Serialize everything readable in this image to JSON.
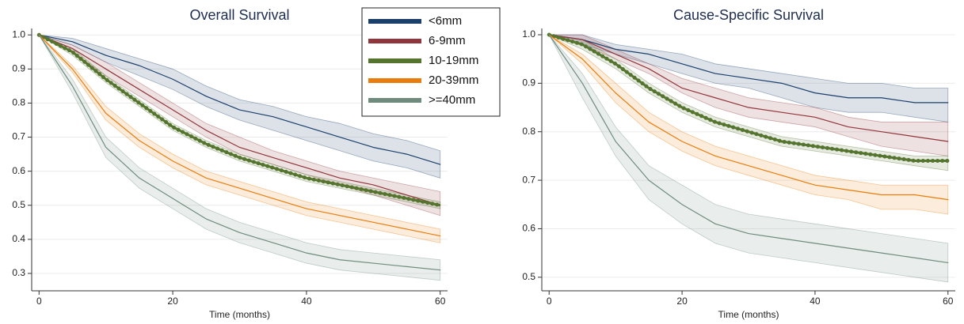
{
  "chart_data": [
    {
      "type": "line",
      "title": "Overall Survival",
      "xlabel": "Time (months)",
      "x": [
        0,
        5,
        10,
        15,
        20,
        25,
        30,
        35,
        40,
        45,
        50,
        55,
        60
      ],
      "xlim": [
        -1.1,
        61.1
      ],
      "xticks": [
        0,
        20,
        40,
        60
      ],
      "ylim": [
        0.249,
        1.019
      ],
      "yticks": [
        0.3,
        0.4,
        0.5,
        0.6,
        0.7,
        0.8,
        0.9,
        {
          "value": 1,
          "label": "1.0"
        }
      ],
      "grid": true,
      "legend": "upper right",
      "series": [
        {
          "name": "<6mm",
          "color": "#1a3f6b",
          "line_width": 1.2,
          "values": [
            1.0,
            0.98,
            0.94,
            0.91,
            0.87,
            0.82,
            0.78,
            0.76,
            0.73,
            0.7,
            0.67,
            0.65,
            0.62
          ],
          "lower": [
            1.0,
            0.97,
            0.92,
            0.88,
            0.84,
            0.79,
            0.75,
            0.72,
            0.69,
            0.66,
            0.63,
            0.61,
            0.58
          ],
          "upper": [
            1.0,
            0.99,
            0.96,
            0.93,
            0.9,
            0.85,
            0.81,
            0.79,
            0.76,
            0.74,
            0.71,
            0.69,
            0.66
          ]
        },
        {
          "name": "6-9mm",
          "color": "#90353b",
          "line_width": 1.2,
          "values": [
            1.0,
            0.96,
            0.9,
            0.84,
            0.78,
            0.72,
            0.67,
            0.64,
            0.61,
            0.58,
            0.56,
            0.53,
            0.5
          ],
          "lower": [
            1.0,
            0.95,
            0.88,
            0.82,
            0.76,
            0.7,
            0.65,
            0.62,
            0.59,
            0.56,
            0.53,
            0.5,
            0.47
          ],
          "upper": [
            1.0,
            0.97,
            0.92,
            0.86,
            0.8,
            0.74,
            0.7,
            0.66,
            0.63,
            0.6,
            0.58,
            0.56,
            0.54
          ]
        },
        {
          "name": "10-19mm",
          "color": "#55752f",
          "line_width": 5,
          "values": [
            1.0,
            0.95,
            0.87,
            0.8,
            0.73,
            0.68,
            0.64,
            0.61,
            0.58,
            0.56,
            0.54,
            0.52,
            0.5
          ],
          "lower": [
            1.0,
            0.94,
            0.86,
            0.79,
            0.72,
            0.67,
            0.63,
            0.6,
            0.57,
            0.55,
            0.53,
            0.51,
            0.49
          ],
          "upper": [
            1.0,
            0.96,
            0.88,
            0.81,
            0.74,
            0.69,
            0.65,
            0.62,
            0.59,
            0.57,
            0.55,
            0.53,
            0.51
          ]
        },
        {
          "name": "20-39mm",
          "color": "#e87d0d",
          "line_width": 1.2,
          "values": [
            1.0,
            0.9,
            0.77,
            0.69,
            0.63,
            0.58,
            0.55,
            0.52,
            0.49,
            0.47,
            0.45,
            0.43,
            0.41
          ],
          "lower": [
            1.0,
            0.89,
            0.75,
            0.67,
            0.61,
            0.56,
            0.53,
            0.5,
            0.47,
            0.45,
            0.43,
            0.41,
            0.39
          ],
          "upper": [
            1.0,
            0.91,
            0.79,
            0.71,
            0.65,
            0.6,
            0.57,
            0.54,
            0.51,
            0.49,
            0.47,
            0.45,
            0.43
          ]
        },
        {
          "name": ">=40mm",
          "color": "#6e8b7d",
          "line_width": 1.2,
          "values": [
            1.0,
            0.85,
            0.67,
            0.58,
            0.52,
            0.46,
            0.42,
            0.39,
            0.36,
            0.34,
            0.33,
            0.32,
            0.31
          ],
          "lower": [
            1.0,
            0.83,
            0.64,
            0.55,
            0.49,
            0.43,
            0.39,
            0.36,
            0.33,
            0.31,
            0.3,
            0.29,
            0.28
          ],
          "upper": [
            1.0,
            0.87,
            0.7,
            0.61,
            0.55,
            0.49,
            0.45,
            0.42,
            0.39,
            0.37,
            0.36,
            0.35,
            0.34
          ]
        }
      ]
    },
    {
      "type": "line",
      "title": "Cause-Specific Survival",
      "xlabel": "Time (months)",
      "x": [
        0,
        5,
        10,
        15,
        20,
        25,
        30,
        35,
        40,
        45,
        50,
        55,
        60
      ],
      "xlim": [
        -1.1,
        61.1
      ],
      "xticks": [
        0,
        20,
        40,
        60
      ],
      "ylim": [
        0.472,
        1.013
      ],
      "yticks": [
        0.5,
        0.6,
        0.7,
        0.8,
        0.9,
        {
          "value": 1,
          "label": "1.0"
        }
      ],
      "grid": true,
      "series": [
        {
          "color": "#1a3f6b",
          "line_width": 1.2,
          "values": [
            1.0,
            0.99,
            0.97,
            0.96,
            0.94,
            0.92,
            0.91,
            0.9,
            0.88,
            0.87,
            0.87,
            0.86,
            0.86
          ],
          "lower": [
            1.0,
            0.98,
            0.96,
            0.94,
            0.92,
            0.9,
            0.89,
            0.87,
            0.85,
            0.84,
            0.84,
            0.83,
            0.82
          ],
          "upper": [
            1.0,
            1.0,
            0.98,
            0.97,
            0.96,
            0.94,
            0.93,
            0.92,
            0.91,
            0.9,
            0.9,
            0.89,
            0.89
          ]
        },
        {
          "color": "#90353b",
          "line_width": 1.2,
          "values": [
            1.0,
            0.99,
            0.96,
            0.93,
            0.89,
            0.87,
            0.85,
            0.84,
            0.83,
            0.81,
            0.8,
            0.79,
            0.78
          ],
          "lower": [
            1.0,
            0.98,
            0.95,
            0.92,
            0.88,
            0.85,
            0.83,
            0.82,
            0.81,
            0.79,
            0.77,
            0.76,
            0.75
          ],
          "upper": [
            1.0,
            1.0,
            0.97,
            0.94,
            0.91,
            0.89,
            0.87,
            0.86,
            0.85,
            0.83,
            0.82,
            0.82,
            0.82
          ]
        },
        {
          "color": "#55752f",
          "line_width": 5,
          "values": [
            1.0,
            0.98,
            0.94,
            0.89,
            0.85,
            0.82,
            0.8,
            0.78,
            0.77,
            0.76,
            0.75,
            0.74,
            0.74
          ],
          "lower": [
            1.0,
            0.97,
            0.93,
            0.88,
            0.84,
            0.81,
            0.79,
            0.77,
            0.76,
            0.75,
            0.74,
            0.73,
            0.72
          ],
          "upper": [
            1.0,
            0.99,
            0.95,
            0.9,
            0.86,
            0.83,
            0.81,
            0.79,
            0.78,
            0.77,
            0.76,
            0.75,
            0.75
          ]
        },
        {
          "color": "#e87d0d",
          "line_width": 1.2,
          "values": [
            1.0,
            0.95,
            0.88,
            0.82,
            0.78,
            0.75,
            0.73,
            0.71,
            0.69,
            0.68,
            0.67,
            0.67,
            0.66
          ],
          "lower": [
            1.0,
            0.94,
            0.86,
            0.8,
            0.76,
            0.73,
            0.71,
            0.69,
            0.67,
            0.66,
            0.64,
            0.64,
            0.63
          ],
          "upper": [
            1.0,
            0.96,
            0.9,
            0.84,
            0.8,
            0.77,
            0.75,
            0.73,
            0.71,
            0.7,
            0.69,
            0.69,
            0.69
          ]
        },
        {
          "color": "#6e8b7d",
          "line_width": 1.2,
          "values": [
            1.0,
            0.9,
            0.78,
            0.7,
            0.65,
            0.61,
            0.59,
            0.58,
            0.57,
            0.56,
            0.55,
            0.54,
            0.53
          ],
          "lower": [
            1.0,
            0.87,
            0.75,
            0.66,
            0.61,
            0.57,
            0.55,
            0.54,
            0.53,
            0.52,
            0.51,
            0.5,
            0.49
          ],
          "upper": [
            1.0,
            0.92,
            0.81,
            0.73,
            0.69,
            0.65,
            0.63,
            0.62,
            0.61,
            0.6,
            0.59,
            0.58,
            0.57
          ]
        }
      ]
    }
  ]
}
